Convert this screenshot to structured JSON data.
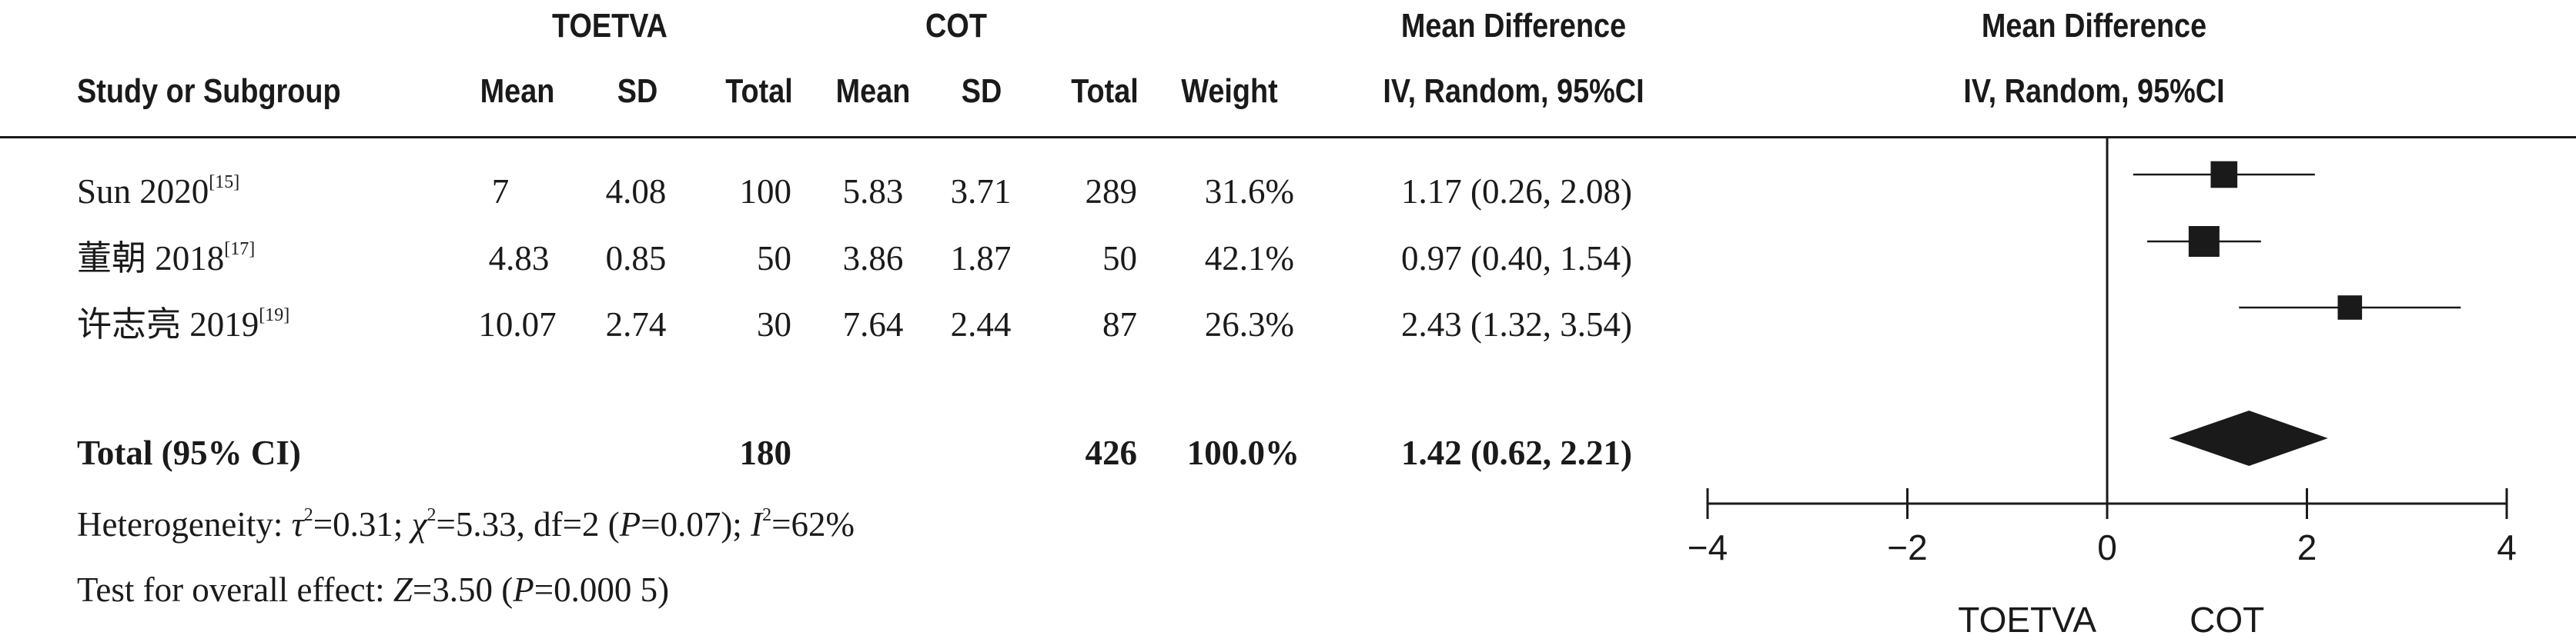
{
  "header": {
    "group1": "TOETVA",
    "group2": "COT",
    "md_title": "Mean Difference",
    "study_col": "Study or Subgroup",
    "mean": "Mean",
    "sd": "SD",
    "total": "Total",
    "weight": "Weight",
    "method": "IV, Random, 95%CI"
  },
  "rows": [
    {
      "study": "Sun 2020",
      "ref": "[15]",
      "m1": "7",
      "sd1": "4.08",
      "n1": "100",
      "m2": "5.83",
      "sd2": "3.71",
      "n2": "289",
      "weight": "31.6%",
      "ci": "1.17 (0.26, 2.08)"
    },
    {
      "study": "董朝 2018",
      "ref": "[17]",
      "m1": "4.83",
      "sd1": "0.85",
      "n1": "50",
      "m2": "3.86",
      "sd2": "1.87",
      "n2": "50",
      "weight": "42.1%",
      "ci": "0.97 (0.40, 1.54)"
    },
    {
      "study": "许志亮 2019",
      "ref": "[19]",
      "m1": "10.07",
      "sd1": "2.74",
      "n1": "30",
      "m2": "7.64",
      "sd2": "2.44",
      "n2": "87",
      "weight": "26.3%",
      "ci": "2.43 (1.32, 3.54)"
    }
  ],
  "total": {
    "label": "Total (95% CI)",
    "n1": "180",
    "n2": "426",
    "weight": "100.0%",
    "ci": "1.42 (0.62, 2.21)"
  },
  "notes": {
    "heterogeneity_prefix": "Heterogeneity: ",
    "tau": "τ",
    "tau_val": "=0.31; ",
    "chi": "χ",
    "chi_val": "=5.33, df=2 (",
    "p": "P",
    "p_val1": "=0.07); ",
    "i": "I",
    "i_val": "=62%",
    "sq": "2",
    "overall_prefix": "Test for overall effect: ",
    "z": "Z",
    "z_val": "=3.50 (",
    "p_val2": "=0.000 5)"
  },
  "chart_data": {
    "type": "forest",
    "xlim": [
      -4,
      4
    ],
    "ticks": [
      -4,
      -2,
      0,
      2,
      4
    ],
    "tick_labels": [
      "−4",
      "−2",
      "0",
      "2",
      "4"
    ],
    "favours_left": "TOETVA",
    "favours_right": "COT",
    "studies": [
      {
        "name": "Sun 2020",
        "est": 1.17,
        "lo": 0.26,
        "hi": 2.08,
        "weight": 31.6
      },
      {
        "name": "董朝 2018",
        "est": 0.97,
        "lo": 0.4,
        "hi": 1.54,
        "weight": 42.1
      },
      {
        "name": "许志亮 2019",
        "est": 2.43,
        "lo": 1.32,
        "hi": 3.54,
        "weight": 26.3
      }
    ],
    "pooled": {
      "est": 1.42,
      "lo": 0.62,
      "hi": 2.21
    }
  }
}
